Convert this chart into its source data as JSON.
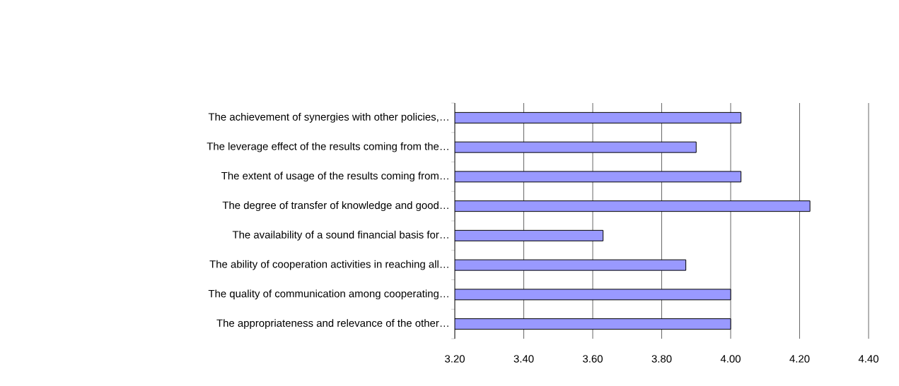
{
  "chart_data": {
    "type": "bar",
    "orientation": "horizontal",
    "categories": [
      "The achievement of synergies with other policies,…",
      "The leverage effect of the results coming from the…",
      "The extent of usage of the results coming from…",
      "The degree of transfer of knowledge and good…",
      "The availability of a sound financial basis for…",
      "The ability of cooperation activities in reaching all…",
      "The quality of communication among cooperating…",
      "The appropriateness and relevance of the other…"
    ],
    "values": [
      4.03,
      3.9,
      4.03,
      4.23,
      3.63,
      3.87,
      4.0,
      4.0
    ],
    "color": "#9999ff",
    "xlim": [
      3.2,
      4.4
    ],
    "xticks": [
      {
        "value": 3.2,
        "label": "3.20"
      },
      {
        "value": 3.4,
        "label": "3.40"
      },
      {
        "value": 3.6,
        "label": "3.60"
      },
      {
        "value": 3.8,
        "label": "3.80"
      },
      {
        "value": 4.0,
        "label": "4.00"
      },
      {
        "value": 4.2,
        "label": "4.20"
      },
      {
        "value": 4.4,
        "label": "4.40"
      }
    ],
    "grid": "x"
  }
}
